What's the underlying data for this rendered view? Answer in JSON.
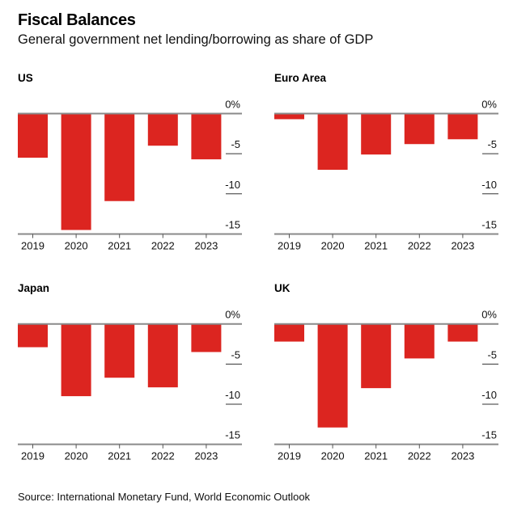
{
  "header": {
    "title": "Fiscal Balances",
    "subtitle": "General government net lending/borrowing as share of GDP"
  },
  "footer": {
    "source": "Source: International Monetary Fund, World Economic Outlook"
  },
  "colors": {
    "bar": "#dc2520",
    "axis": "#8a8a8a"
  },
  "chart_data": [
    {
      "type": "bar",
      "title": "US",
      "categories": [
        "2019",
        "2020",
        "2021",
        "2022",
        "2023"
      ],
      "values": [
        -5.5,
        -14.5,
        -10.9,
        -4.0,
        -5.7
      ],
      "ylim": [
        -15,
        0
      ],
      "yticks": [
        0,
        -5,
        -10,
        -15
      ],
      "ytick_labels": [
        "0%",
        "-5",
        "-10",
        "-15"
      ],
      "xlabel": "",
      "ylabel": "",
      "y_axis_side": "right",
      "grid": false
    },
    {
      "type": "bar",
      "title": "Euro Area",
      "categories": [
        "2019",
        "2020",
        "2021",
        "2022",
        "2023"
      ],
      "values": [
        -0.7,
        -7.0,
        -5.1,
        -3.8,
        -3.2
      ],
      "ylim": [
        -15,
        0
      ],
      "yticks": [
        0,
        -5,
        -10,
        -15
      ],
      "ytick_labels": [
        "0%",
        "-5",
        "-10",
        "-15"
      ],
      "xlabel": "",
      "ylabel": "",
      "y_axis_side": "right",
      "grid": false
    },
    {
      "type": "bar",
      "title": "Japan",
      "categories": [
        "2019",
        "2020",
        "2021",
        "2022",
        "2023"
      ],
      "values": [
        -2.9,
        -9.0,
        -6.7,
        -7.9,
        -3.5
      ],
      "ylim": [
        -15,
        0
      ],
      "yticks": [
        0,
        -5,
        -10,
        -15
      ],
      "ytick_labels": [
        "0%",
        "-5",
        "-10",
        "-15"
      ],
      "xlabel": "",
      "ylabel": "",
      "y_axis_side": "right",
      "grid": false
    },
    {
      "type": "bar",
      "title": "UK",
      "categories": [
        "2019",
        "2020",
        "2021",
        "2022",
        "2023"
      ],
      "values": [
        -2.2,
        -12.9,
        -8.0,
        -4.3,
        -2.2
      ],
      "ylim": [
        -15,
        0
      ],
      "yticks": [
        0,
        -5,
        -10,
        -15
      ],
      "ytick_labels": [
        "0%",
        "-5",
        "-10",
        "-15"
      ],
      "xlabel": "",
      "ylabel": "",
      "y_axis_side": "right",
      "grid": false
    }
  ]
}
